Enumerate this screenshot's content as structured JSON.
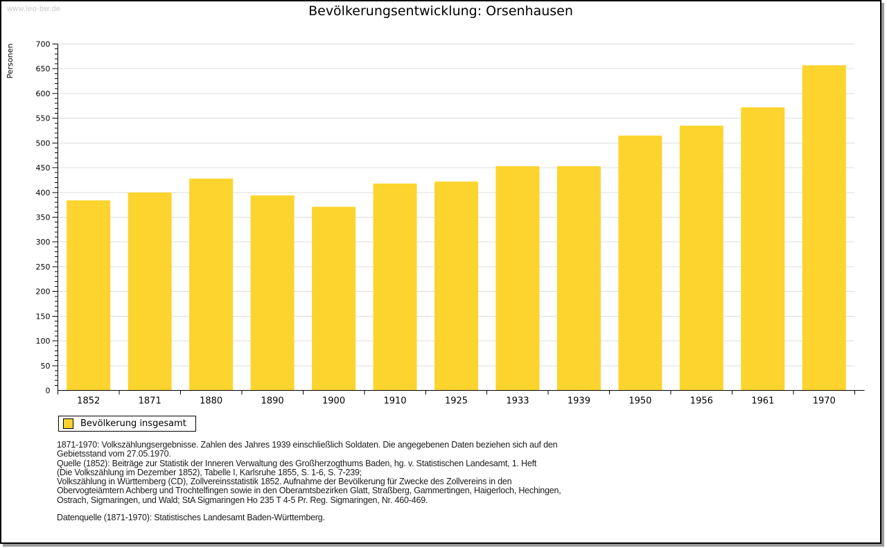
{
  "page": {
    "watermark": "www.leo-bw.de",
    "title": "Bevölkerungsentwicklung: Orsenhausen"
  },
  "chart_data": {
    "type": "bar",
    "title": "Bevölkerungsentwicklung: Orsenhausen",
    "categories": [
      "1852",
      "1871",
      "1880",
      "1890",
      "1900",
      "1910",
      "1925",
      "1933",
      "1939",
      "1950",
      "1956",
      "1961",
      "1970"
    ],
    "values": [
      384,
      400,
      428,
      394,
      371,
      418,
      422,
      453,
      453,
      515,
      535,
      572,
      657
    ],
    "series_name": "Bevölkerung insgesamt",
    "xlabel": "",
    "ylabel": "Personen",
    "ylim": [
      0,
      700
    ],
    "ytick_step": 50,
    "yminor_step": 10,
    "grid": true,
    "legend_position": "bottom-left",
    "bar_color": "#FCD42D",
    "grid_color": "#DCDCDC",
    "axis_color": "#000000"
  },
  "legend": {
    "label": "Bevölkerung insgesamt",
    "swatch_color": "#FCD42D"
  },
  "footer": {
    "lines": [
      "1871-1970: Volkszählungsergebnisse. Zahlen des Jahres 1939 einschließlich Soldaten. Die angegebenen Daten beziehen sich auf den",
      "Gebietsstand vom 27.05.1970.",
      "Quelle (1852): Beiträge zur Statistik der Inneren Verwaltung des Großherzogthums Baden, hg. v. Statistischen Landesamt, 1. Heft",
      "(Die Volkszählung im Dezember 1852), Tabelle I, Karlsruhe 1855, S. 1-6, S. 7-239;",
      "Volkszählung in Württemberg (CD), Zollvereinsstatistik 1852. Aufnahme der Bevölkerung für Zwecke des Zollvereins in den",
      "Obervogteiämtern Achberg und Trochtelfingen sowie in den Oberamtsbezirken Glatt, Straßberg, Gammertingen, Haigerloch, Hechingen,",
      "Ostrach, Sigmaringen, und Wald; StA Sigmaringen Ho 235 T 4-5 Pr. Reg. Sigmaringen, Nr. 460-469."
    ],
    "datasource": "Datenquelle (1871-1970): Statistisches Landesamt Baden-Württemberg."
  },
  "colors": {
    "bar": "#FCD42D",
    "grid": "#DCDCDC",
    "axis": "#000000",
    "watermark": "#CACACA",
    "shadow": "#9A9A9A"
  }
}
